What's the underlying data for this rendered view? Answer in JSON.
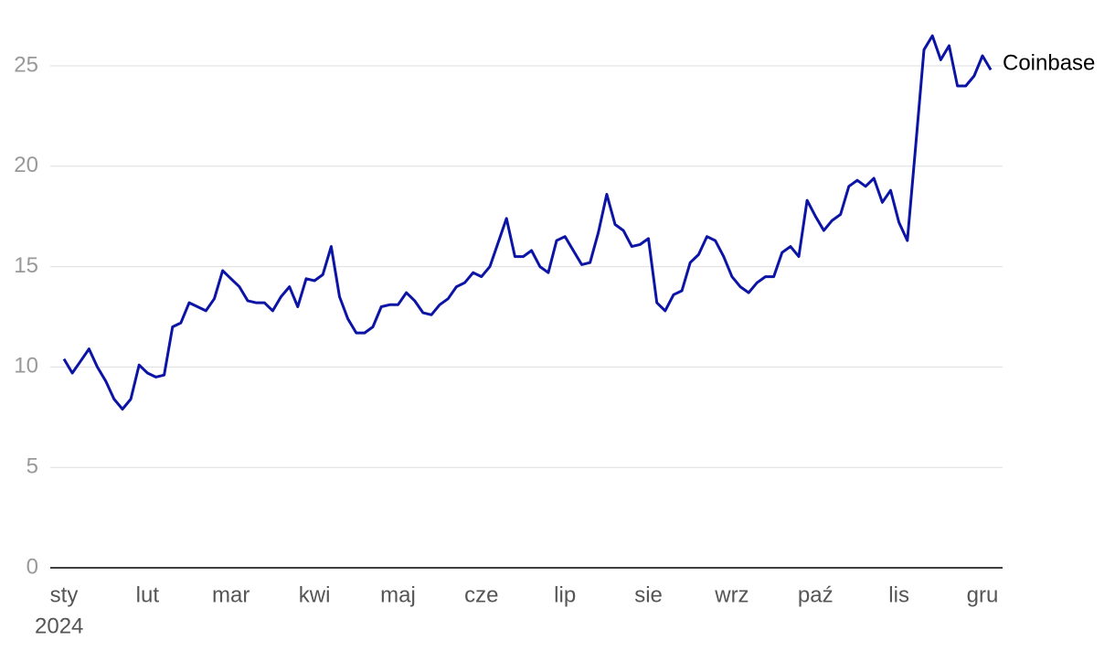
{
  "chart_data": {
    "type": "line",
    "categories": [
      "sty",
      null,
      null,
      null,
      null,
      null,
      null,
      null,
      null,
      null,
      "lut",
      null,
      null,
      null,
      null,
      null,
      null,
      null,
      null,
      null,
      "mar",
      null,
      null,
      null,
      null,
      null,
      null,
      null,
      null,
      null,
      "kwi",
      null,
      null,
      null,
      null,
      null,
      null,
      null,
      null,
      null,
      "maj",
      null,
      null,
      null,
      null,
      null,
      null,
      null,
      null,
      null,
      "cze",
      null,
      null,
      null,
      null,
      null,
      null,
      null,
      null,
      null,
      "lip",
      null,
      null,
      null,
      null,
      null,
      null,
      null,
      null,
      null,
      "sie",
      null,
      null,
      null,
      null,
      null,
      null,
      null,
      null,
      null,
      "wrz",
      null,
      null,
      null,
      null,
      null,
      null,
      null,
      null,
      null,
      "paź",
      null,
      null,
      null,
      null,
      null,
      null,
      null,
      null,
      null,
      "lis",
      null,
      null,
      null,
      null,
      null,
      null,
      null,
      null,
      null,
      "gru",
      null
    ],
    "year_label": "2024",
    "series": [
      {
        "name": "Coinbase",
        "color": "#0c14a6",
        "values": [
          10.4,
          9.7,
          10.3,
          10.9,
          10.0,
          9.3,
          8.4,
          7.9,
          8.4,
          10.1,
          9.7,
          9.5,
          9.6,
          12.0,
          12.2,
          13.2,
          13.0,
          12.8,
          13.4,
          14.8,
          14.4,
          14.0,
          13.3,
          13.2,
          13.2,
          12.8,
          13.5,
          14.0,
          13.0,
          14.4,
          14.3,
          14.6,
          16.0,
          13.5,
          12.4,
          11.7,
          11.7,
          12.0,
          13.0,
          13.1,
          13.1,
          13.7,
          13.3,
          12.7,
          12.6,
          13.1,
          13.4,
          14.0,
          14.2,
          14.7,
          14.5,
          15.0,
          16.2,
          17.4,
          15.5,
          15.5,
          15.8,
          15.0,
          14.7,
          16.3,
          16.5,
          15.8,
          15.1,
          15.2,
          16.7,
          18.6,
          17.1,
          16.8,
          16.0,
          16.1,
          16.4,
          13.2,
          12.8,
          13.6,
          13.8,
          15.2,
          15.6,
          16.5,
          16.3,
          15.5,
          14.5,
          14.0,
          13.7,
          14.2,
          14.5,
          14.5,
          15.7,
          16.0,
          15.5,
          18.3,
          17.5,
          16.8,
          17.3,
          17.6,
          19.0,
          19.3,
          19.0,
          19.4,
          18.2,
          18.8,
          17.2,
          16.3,
          21.0,
          25.8,
          26.5,
          25.3,
          26.0,
          24.0,
          24.0,
          24.5,
          25.5,
          24.8
        ]
      }
    ],
    "ylim": [
      0,
      27.5
    ],
    "yticks": [
      0,
      5,
      10,
      15,
      20,
      25
    ],
    "grid": true
  }
}
